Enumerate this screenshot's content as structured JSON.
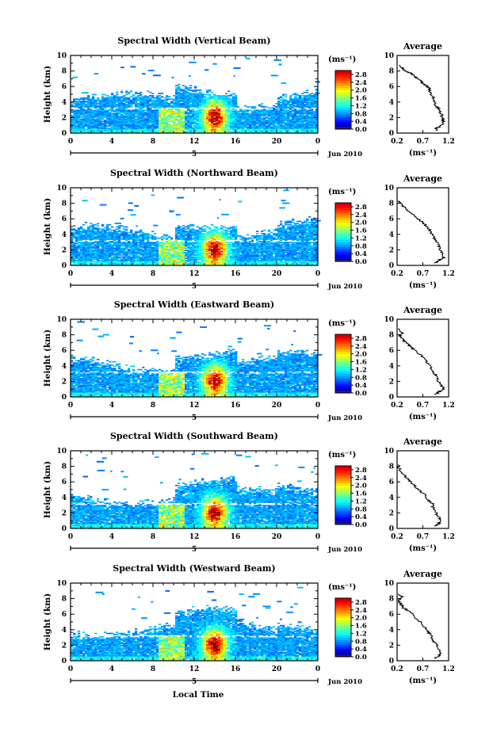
{
  "chart_data": [
    {
      "type": "heatmap",
      "title": "Spectral Width (Vertical Beam)",
      "ylabel": "Height (km)",
      "xlabel": "",
      "x_ticks": [
        "0",
        "4",
        "8",
        "12",
        "16",
        "20",
        "0"
      ],
      "y_ticks": [
        "0",
        "2",
        "4",
        "6",
        "8",
        "10"
      ],
      "xlim": [
        0,
        24
      ],
      "ylim": [
        0,
        10
      ],
      "date_marker": "5",
      "date_label": "Jun 2010",
      "colorbar": {
        "unit": "(ms⁻¹)",
        "ticks": [
          "0.0",
          "0.4",
          "0.8",
          "1.2",
          "1.6",
          "2.0",
          "2.4",
          "2.8"
        ],
        "range": [
          0,
          3.0
        ]
      },
      "average_profile": {
        "title": "Average",
        "xlabel": "(ms⁻¹)",
        "x_ticks": [
          "0.2",
          "0.7",
          "1.2"
        ],
        "y_ticks": [
          "0",
          "2",
          "4",
          "6",
          "8",
          "10"
        ],
        "xlim": [
          0.2,
          1.2
        ],
        "ylim": [
          0,
          10
        ],
        "points": [
          [
            1.0,
            0.3
          ],
          [
            0.95,
            0.6
          ],
          [
            1.05,
            0.9
          ],
          [
            1.1,
            1.5
          ],
          [
            1.08,
            2.0
          ],
          [
            1.05,
            2.6
          ],
          [
            1.02,
            3.1
          ],
          [
            0.95,
            3.6
          ],
          [
            0.93,
            4.2
          ],
          [
            0.88,
            4.8
          ],
          [
            0.85,
            5.3
          ],
          [
            0.83,
            5.8
          ],
          [
            0.72,
            6.3
          ],
          [
            0.65,
            6.8
          ],
          [
            0.55,
            7.2
          ],
          [
            0.5,
            7.6
          ],
          [
            0.4,
            7.9
          ],
          [
            0.3,
            8.3
          ],
          [
            0.25,
            8.8
          ]
        ]
      }
    },
    {
      "type": "heatmap",
      "title": "Spectral Width (Northward Beam)",
      "ylabel": "Height (km)",
      "xlabel": "",
      "x_ticks": [
        "0",
        "4",
        "8",
        "12",
        "16",
        "20",
        "0"
      ],
      "y_ticks": [
        "0",
        "2",
        "4",
        "6",
        "8",
        "10"
      ],
      "xlim": [
        0,
        24
      ],
      "ylim": [
        0,
        10
      ],
      "date_marker": "5",
      "date_label": "Jun 2010",
      "colorbar": {
        "unit": "(ms⁻¹)",
        "ticks": [
          "0.0",
          "0.4",
          "0.8",
          "1.2",
          "1.6",
          "2.0",
          "2.4",
          "2.8"
        ],
        "range": [
          0,
          3.0
        ]
      },
      "average_profile": {
        "title": "Average",
        "xlabel": "(ms⁻¹)",
        "x_ticks": [
          "0.2",
          "0.7",
          "1.2"
        ],
        "y_ticks": [
          "0",
          "2",
          "4",
          "6",
          "8",
          "10"
        ],
        "xlim": [
          0.2,
          1.2
        ],
        "ylim": [
          0,
          10
        ],
        "points": [
          [
            0.95,
            0.3
          ],
          [
            1.0,
            0.6
          ],
          [
            1.1,
            1.0
          ],
          [
            1.08,
            1.6
          ],
          [
            1.02,
            2.2
          ],
          [
            1.0,
            2.7
          ],
          [
            0.95,
            3.2
          ],
          [
            0.9,
            3.8
          ],
          [
            0.85,
            4.3
          ],
          [
            0.8,
            4.9
          ],
          [
            0.72,
            5.4
          ],
          [
            0.62,
            5.9
          ],
          [
            0.55,
            6.4
          ],
          [
            0.45,
            6.9
          ],
          [
            0.35,
            7.4
          ],
          [
            0.28,
            7.9
          ],
          [
            0.22,
            8.3
          ]
        ]
      }
    },
    {
      "type": "heatmap",
      "title": "Spectral Width (Eastward Beam)",
      "ylabel": "Height (km)",
      "xlabel": "",
      "x_ticks": [
        "0",
        "4",
        "8",
        "12",
        "16",
        "20",
        "0"
      ],
      "y_ticks": [
        "0",
        "2",
        "4",
        "6",
        "8",
        "10"
      ],
      "xlim": [
        0,
        24
      ],
      "ylim": [
        0,
        10
      ],
      "date_marker": "5",
      "date_label": "Jun 2010",
      "colorbar": {
        "unit": "(ms⁻¹)",
        "ticks": [
          "0.0",
          "0.4",
          "0.8",
          "1.2",
          "1.6",
          "2.0",
          "2.4",
          "2.8"
        ],
        "range": [
          0,
          3.0
        ]
      },
      "average_profile": {
        "title": "Average",
        "xlabel": "(ms⁻¹)",
        "x_ticks": [
          "0.2",
          "0.7",
          "1.2"
        ],
        "y_ticks": [
          "0",
          "2",
          "4",
          "6",
          "8",
          "10"
        ],
        "xlim": [
          0.2,
          1.2
        ],
        "ylim": [
          0,
          10
        ],
        "points": [
          [
            0.95,
            0.3
          ],
          [
            1.0,
            0.6
          ],
          [
            1.1,
            1.0
          ],
          [
            1.05,
            1.6
          ],
          [
            1.0,
            2.1
          ],
          [
            0.96,
            2.7
          ],
          [
            0.9,
            3.2
          ],
          [
            0.85,
            3.8
          ],
          [
            0.78,
            4.4
          ],
          [
            0.72,
            5.0
          ],
          [
            0.62,
            5.6
          ],
          [
            0.5,
            6.2
          ],
          [
            0.42,
            6.7
          ],
          [
            0.35,
            7.1
          ],
          [
            0.3,
            7.5
          ],
          [
            0.25,
            7.9
          ],
          [
            0.3,
            8.3
          ],
          [
            0.22,
            8.8
          ]
        ]
      }
    },
    {
      "type": "heatmap",
      "title": "Spectral Width (Southward Beam)",
      "ylabel": "Height (km)",
      "xlabel": "",
      "x_ticks": [
        "0",
        "4",
        "8",
        "12",
        "16",
        "20",
        "0"
      ],
      "y_ticks": [
        "0",
        "2",
        "4",
        "6",
        "8",
        "10"
      ],
      "xlim": [
        0,
        24
      ],
      "ylim": [
        0,
        10
      ],
      "date_marker": "5",
      "date_label": "Jun 2010",
      "colorbar": {
        "unit": "(ms⁻¹)",
        "ticks": [
          "0.0",
          "0.4",
          "0.8",
          "1.2",
          "1.6",
          "2.0",
          "2.4",
          "2.8"
        ],
        "range": [
          0,
          3.0
        ]
      },
      "average_profile": {
        "title": "Average",
        "xlabel": "(ms⁻¹)",
        "x_ticks": [
          "0.2",
          "0.7",
          "1.2"
        ],
        "y_ticks": [
          "0",
          "2",
          "4",
          "6",
          "8",
          "10"
        ],
        "xlim": [
          0.2,
          1.2
        ],
        "ylim": [
          0,
          10
        ],
        "points": [
          [
            0.95,
            0.3
          ],
          [
            1.0,
            0.6
          ],
          [
            1.05,
            1.0
          ],
          [
            1.0,
            1.5
          ],
          [
            0.95,
            2.1
          ],
          [
            0.9,
            2.6
          ],
          [
            0.88,
            3.2
          ],
          [
            0.8,
            3.7
          ],
          [
            0.75,
            4.3
          ],
          [
            0.65,
            4.8
          ],
          [
            0.55,
            5.4
          ],
          [
            0.48,
            5.9
          ],
          [
            0.38,
            6.5
          ],
          [
            0.32,
            7.0
          ],
          [
            0.25,
            7.6
          ],
          [
            0.22,
            8.2
          ]
        ]
      }
    },
    {
      "type": "heatmap",
      "title": "Spectral Width (Westward Beam)",
      "ylabel": "Height (km)",
      "xlabel": "Local Time",
      "x_ticks": [
        "0",
        "4",
        "8",
        "12",
        "16",
        "20",
        "0"
      ],
      "y_ticks": [
        "0",
        "2",
        "4",
        "6",
        "8",
        "10"
      ],
      "xlim": [
        0,
        24
      ],
      "ylim": [
        0,
        10
      ],
      "date_marker": "5",
      "date_label": "Jun 2010",
      "colorbar": {
        "unit": "(ms⁻¹)",
        "ticks": [
          "0.0",
          "0.4",
          "0.8",
          "1.2",
          "1.6",
          "2.0",
          "2.4",
          "2.8"
        ],
        "range": [
          0,
          3.0
        ]
      },
      "average_profile": {
        "title": "Average",
        "xlabel": "(ms⁻¹)",
        "x_ticks": [
          "0.2",
          "0.7",
          "1.2"
        ],
        "y_ticks": [
          "0",
          "2",
          "4",
          "6",
          "8",
          "10"
        ],
        "xlim": [
          0.2,
          1.2
        ],
        "ylim": [
          0,
          10
        ],
        "points": [
          [
            0.95,
            0.3
          ],
          [
            1.0,
            0.6
          ],
          [
            1.05,
            1.0
          ],
          [
            1.0,
            1.6
          ],
          [
            0.95,
            2.2
          ],
          [
            0.9,
            2.7
          ],
          [
            0.85,
            3.3
          ],
          [
            0.8,
            3.8
          ],
          [
            0.72,
            4.4
          ],
          [
            0.65,
            5.0
          ],
          [
            0.55,
            5.6
          ],
          [
            0.45,
            6.3
          ],
          [
            0.32,
            6.8
          ],
          [
            0.28,
            7.3
          ],
          [
            0.22,
            7.8
          ],
          [
            0.3,
            8.2
          ],
          [
            0.22,
            8.6
          ]
        ]
      }
    }
  ]
}
